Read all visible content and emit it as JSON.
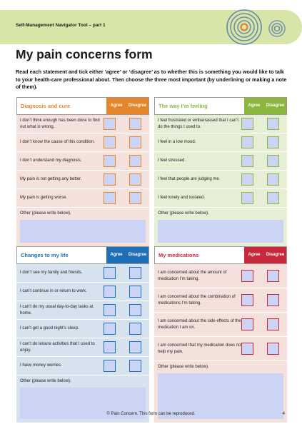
{
  "header": {
    "title": "Self-Management Navigator Tool – part 1"
  },
  "page_title": "My pain concerns form",
  "intro": "Read each statement and tick either ‘agree’ or ‘disagree’ as to whether this is something you would like to talk to your health-care professional about. Then choose the three most important (by underlining or making a note of them).",
  "colors": {
    "orange": "#e5862d",
    "green": "#8cb63c",
    "blue": "#1f6fb8",
    "red": "#c8283c"
  },
  "panels": [
    {
      "title": "Diagnosis and cure",
      "agree": "Agree",
      "disagree": "Disagree",
      "items": [
        "I don’t think enough has been done to find out what is wrong.",
        "I don’t know the cause of this condition.",
        "I don’t understand my diagnosis.",
        "My pain is not getting any better.",
        "My pain is getting worse."
      ],
      "other": "Other (please write below)."
    },
    {
      "title": "The way I’m feeling",
      "agree": "Agree",
      "disagree": "Disagree",
      "items": [
        "I feel frustrated or embarrassed that I can’t do the things I used to.",
        "I feel in a low mood.",
        "I feel stressed.",
        "I feel that people are judging me.",
        "I feel lonely and isolated."
      ],
      "other": "Other (please write below)."
    },
    {
      "title": "Changes to my life",
      "agree": "Agree",
      "disagree": "Disagree",
      "items": [
        "I don’t see my family and friends.",
        "I can’t continue in or return to work.",
        "I can’t do my usual day-to-day tasks at home.",
        "I can’t get a good night’s sleep.",
        "I can’t do leisure activities that I used to enjoy.",
        "I have money worries."
      ],
      "other": "Other (please write below)."
    },
    {
      "title": "My medications",
      "agree": "Agree",
      "disagree": "Disagree",
      "items": [
        "I am concerned about the amount of medication I’m taking.",
        "I am concerned about the combination of medications I’m taking.",
        "I am concerned about the side effects of the medication I am on.",
        "I am concerned that my medication does not help my pain."
      ],
      "other": "Other (please write below)."
    }
  ],
  "footer": {
    "text": "© Pain Concern. This form can be reproduced.",
    "page": "4"
  }
}
